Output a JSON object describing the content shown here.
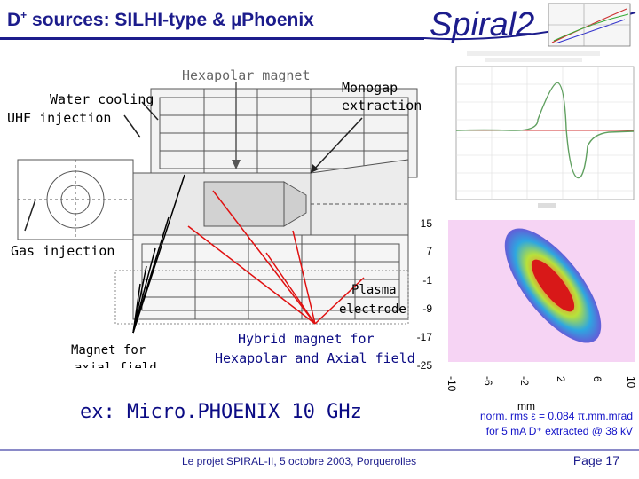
{
  "slide": {
    "title_prefix": "D",
    "title_sup": "+",
    "title_rest": " sources: SILHI-type & µPhoenix",
    "logo_text": "Spiral2",
    "labels": {
      "water_cooling": "Water cooling",
      "uhf_injection": "UHF injection",
      "hexapolar_magnet": "Hexapolar magnet",
      "monogap_line1": "Monogap",
      "monogap_line2": "extraction",
      "gas_injection": "Gas injection",
      "plasma_line1": "Plasma",
      "plasma_line2": "electrode",
      "magnet_axial_line1": "Magnet  for",
      "magnet_axial_line2": "axial field",
      "hybrid_line1": "Hybrid magnet for",
      "hybrid_line2": "Hexapolar and Axial field"
    },
    "example": "ex: Micro.PHOENIX 10 GHz",
    "emittance_line1": "norm. rms ε =  0.084 π.mm.mrad",
    "emittance_line2": "for 5 mA D⁺ extracted @ 38 kV",
    "footer": "Le projet SPIRAL-II, 5 octobre 2003, Porquerolles",
    "page": "Page 17",
    "plasma_plot": {
      "y_ticks": [
        "15",
        "7",
        "-1",
        "-9",
        "-17",
        "-25"
      ],
      "x_ticks": [
        "-10",
        "-6",
        "-2",
        "2",
        "6",
        "10"
      ],
      "x_unit": "mm"
    }
  },
  "colors": {
    "title": "#1c1c8c",
    "emittance_text": "#1212c8",
    "pointer_lines": "#e01010",
    "pointer_lines_black": "#000000"
  }
}
